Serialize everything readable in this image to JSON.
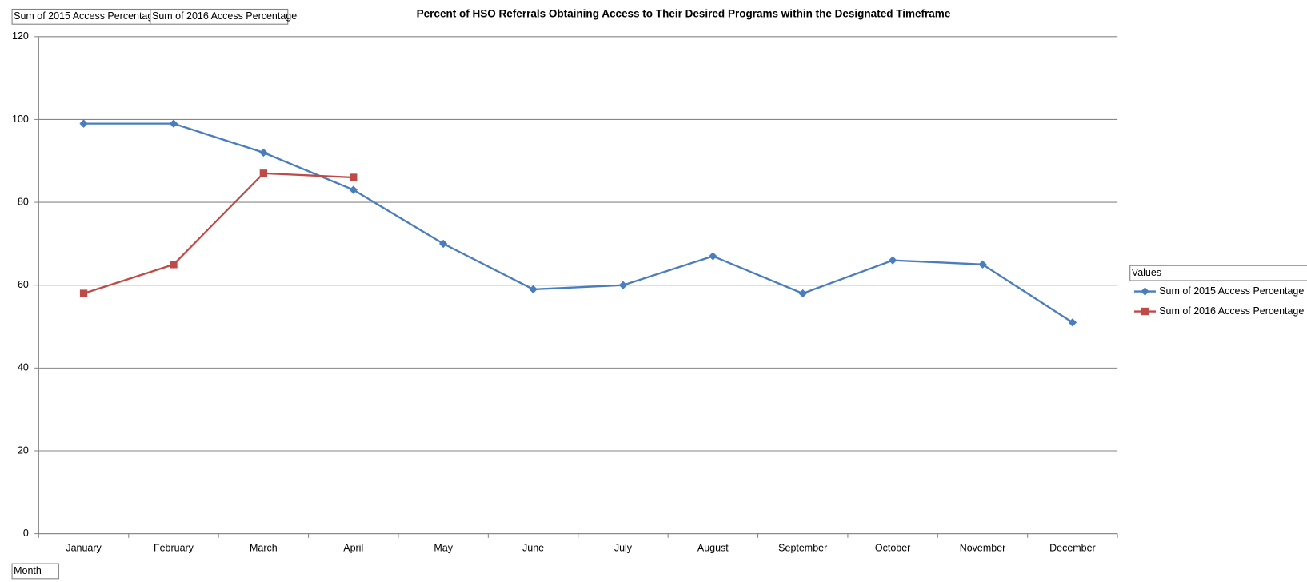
{
  "chart_data": {
    "type": "line",
    "title": "Percent of HSO Referrals Obtaining Access to Their  Desired Programs within the Designated Timeframe",
    "categories": [
      "January",
      "February",
      "March",
      "April",
      "May",
      "June",
      "July",
      "August",
      "September",
      "October",
      "November",
      "December"
    ],
    "series": [
      {
        "name": "Sum of 2015 Access Percentage",
        "color": "#4a7ebb",
        "marker": "diamond",
        "values": [
          99,
          99,
          92,
          83,
          70,
          59,
          60,
          67,
          58,
          66,
          65,
          51
        ]
      },
      {
        "name": "Sum of 2016 Access Percentage",
        "color": "#be4b48",
        "marker": "square",
        "values": [
          58,
          65,
          87,
          86,
          null,
          null,
          null,
          null,
          null,
          null,
          null,
          null
        ]
      }
    ],
    "ylim": [
      0,
      120
    ],
    "yticks": [
      0,
      20,
      40,
      60,
      80,
      100,
      120
    ],
    "grid": true,
    "x_label": "Month",
    "legend_title": "Values",
    "legend": "right"
  }
}
